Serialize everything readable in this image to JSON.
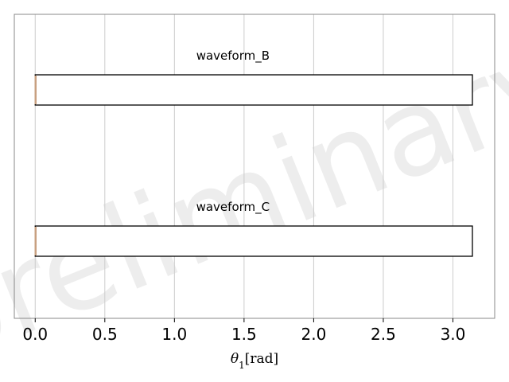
{
  "chart_data": {
    "type": "bar",
    "orientation": "horizontal",
    "categories": [
      "waveform_B",
      "waveform_C"
    ],
    "series": [
      {
        "label": "waveform_B",
        "start": 0.0,
        "end": 3.14
      },
      {
        "label": "waveform_C",
        "start": 0.0,
        "end": 3.14
      }
    ],
    "xlabel": "θ1[rad]",
    "xlim": [
      -0.15,
      3.3
    ],
    "xticks": [
      0.0,
      0.5,
      1.0,
      1.5,
      2.0,
      2.5,
      3.0
    ],
    "xtick_labels": [
      "0.0",
      "0.5",
      "1.0",
      "1.5",
      "2.0",
      "2.5",
      "3.0"
    ],
    "grid": "vertical",
    "watermark": "preliminary",
    "colors": {
      "bar_edge": "#000000",
      "bar_fill": "#ffffff",
      "marker": "#c8a080",
      "grid": "#cccccc",
      "frame": "#888888"
    }
  }
}
